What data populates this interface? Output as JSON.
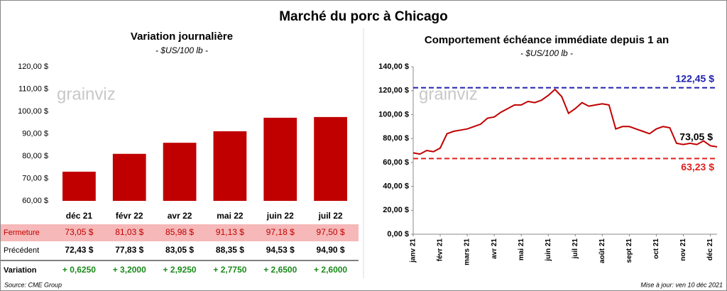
{
  "title": "Marché du porc à Chicago",
  "source": "Source: CME Group",
  "updated": "Mise à jour: ven 10 déc 2021",
  "watermark": "grainviz",
  "chart_data": [
    {
      "type": "bar",
      "title": "Variation journalière",
      "subtitle": "- $US/100 lb -",
      "categories": [
        "déc 21",
        "févr 22",
        "avr 22",
        "mai 22",
        "juin 22",
        "juil 22"
      ],
      "values": [
        73.05,
        81.03,
        85.98,
        91.13,
        97.18,
        97.5
      ],
      "value_labels_name": "Fermeture",
      "value_labels": [
        "73,05  $",
        "81,03  $",
        "85,98  $",
        "91,13  $",
        "97,18  $",
        "97,50  $"
      ],
      "color": "#c00000",
      "ylim": [
        60,
        120
      ],
      "yticks": [
        {
          "value": 60,
          "label": "60,00 $"
        },
        {
          "value": 70,
          "label": "70,00 $"
        },
        {
          "value": 80,
          "label": "80,00 $"
        },
        {
          "value": 90,
          "label": "90,00 $"
        },
        {
          "value": 100,
          "label": "100,00 $"
        },
        {
          "value": 110,
          "label": "110,00 $"
        },
        {
          "value": 120,
          "label": "120,00 $"
        }
      ],
      "table": {
        "rows": [
          {
            "label": "Précédent",
            "cells": [
              "72,43  $",
              "77,83  $",
              "83,05  $",
              "88,35  $",
              "94,53  $",
              "94,90  $"
            ]
          },
          {
            "label": "Variation",
            "cells": [
              "+ 0,6250",
              "+ 3,2000",
              "+ 2,9250",
              "+ 2,7750",
              "+ 2,6500",
              "+ 2,6000"
            ]
          }
        ]
      }
    },
    {
      "type": "line",
      "title": "Comportement  échéance immédiate depuis 1 an",
      "subtitle": "- $US/100 lb -",
      "categories": [
        "janv 21",
        null,
        null,
        null,
        "févr 21",
        null,
        null,
        null,
        "mars 21",
        null,
        null,
        null,
        "avr 21",
        null,
        null,
        null,
        "mai 21",
        null,
        null,
        null,
        "juin 21",
        null,
        null,
        null,
        "juil 21",
        null,
        null,
        null,
        "août 21",
        null,
        null,
        null,
        "sept 21",
        null,
        null,
        null,
        "oct 21",
        null,
        null,
        null,
        "nov 21",
        null,
        null,
        null,
        "déc 21",
        null
      ],
      "series": [
        {
          "name": "Échéance immédiate",
          "color": "#c00000",
          "values": [
            68,
            67,
            70,
            69,
            72,
            84,
            86,
            87,
            88,
            90,
            92,
            97,
            98,
            102,
            105,
            108,
            108,
            111,
            110,
            112,
            116,
            121,
            115,
            101,
            105,
            110,
            107,
            108,
            109,
            108,
            88,
            90,
            90,
            88,
            86,
            84,
            88,
            90,
            89,
            76,
            75,
            76,
            75,
            78,
            74,
            73.05
          ]
        }
      ],
      "reference_lines": [
        {
          "value": 122.45,
          "label": "122,45 $",
          "color": "#2020b0"
        },
        {
          "value": 63.23,
          "label": "63,23 $",
          "color": "#e02020"
        }
      ],
      "annotation": {
        "value": 73.05,
        "label": "73,05 $"
      },
      "ylim": [
        0,
        140
      ],
      "yticks": [
        {
          "value": 0,
          "label": "0,00 $"
        },
        {
          "value": 20,
          "label": "20,00 $"
        },
        {
          "value": 40,
          "label": "40,00 $"
        },
        {
          "value": 60,
          "label": "60,00 $"
        },
        {
          "value": 80,
          "label": "80,00 $"
        },
        {
          "value": 100,
          "label": "100,00 $"
        },
        {
          "value": 120,
          "label": "120,00 $"
        },
        {
          "value": 140,
          "label": "140,00 $"
        }
      ]
    }
  ]
}
